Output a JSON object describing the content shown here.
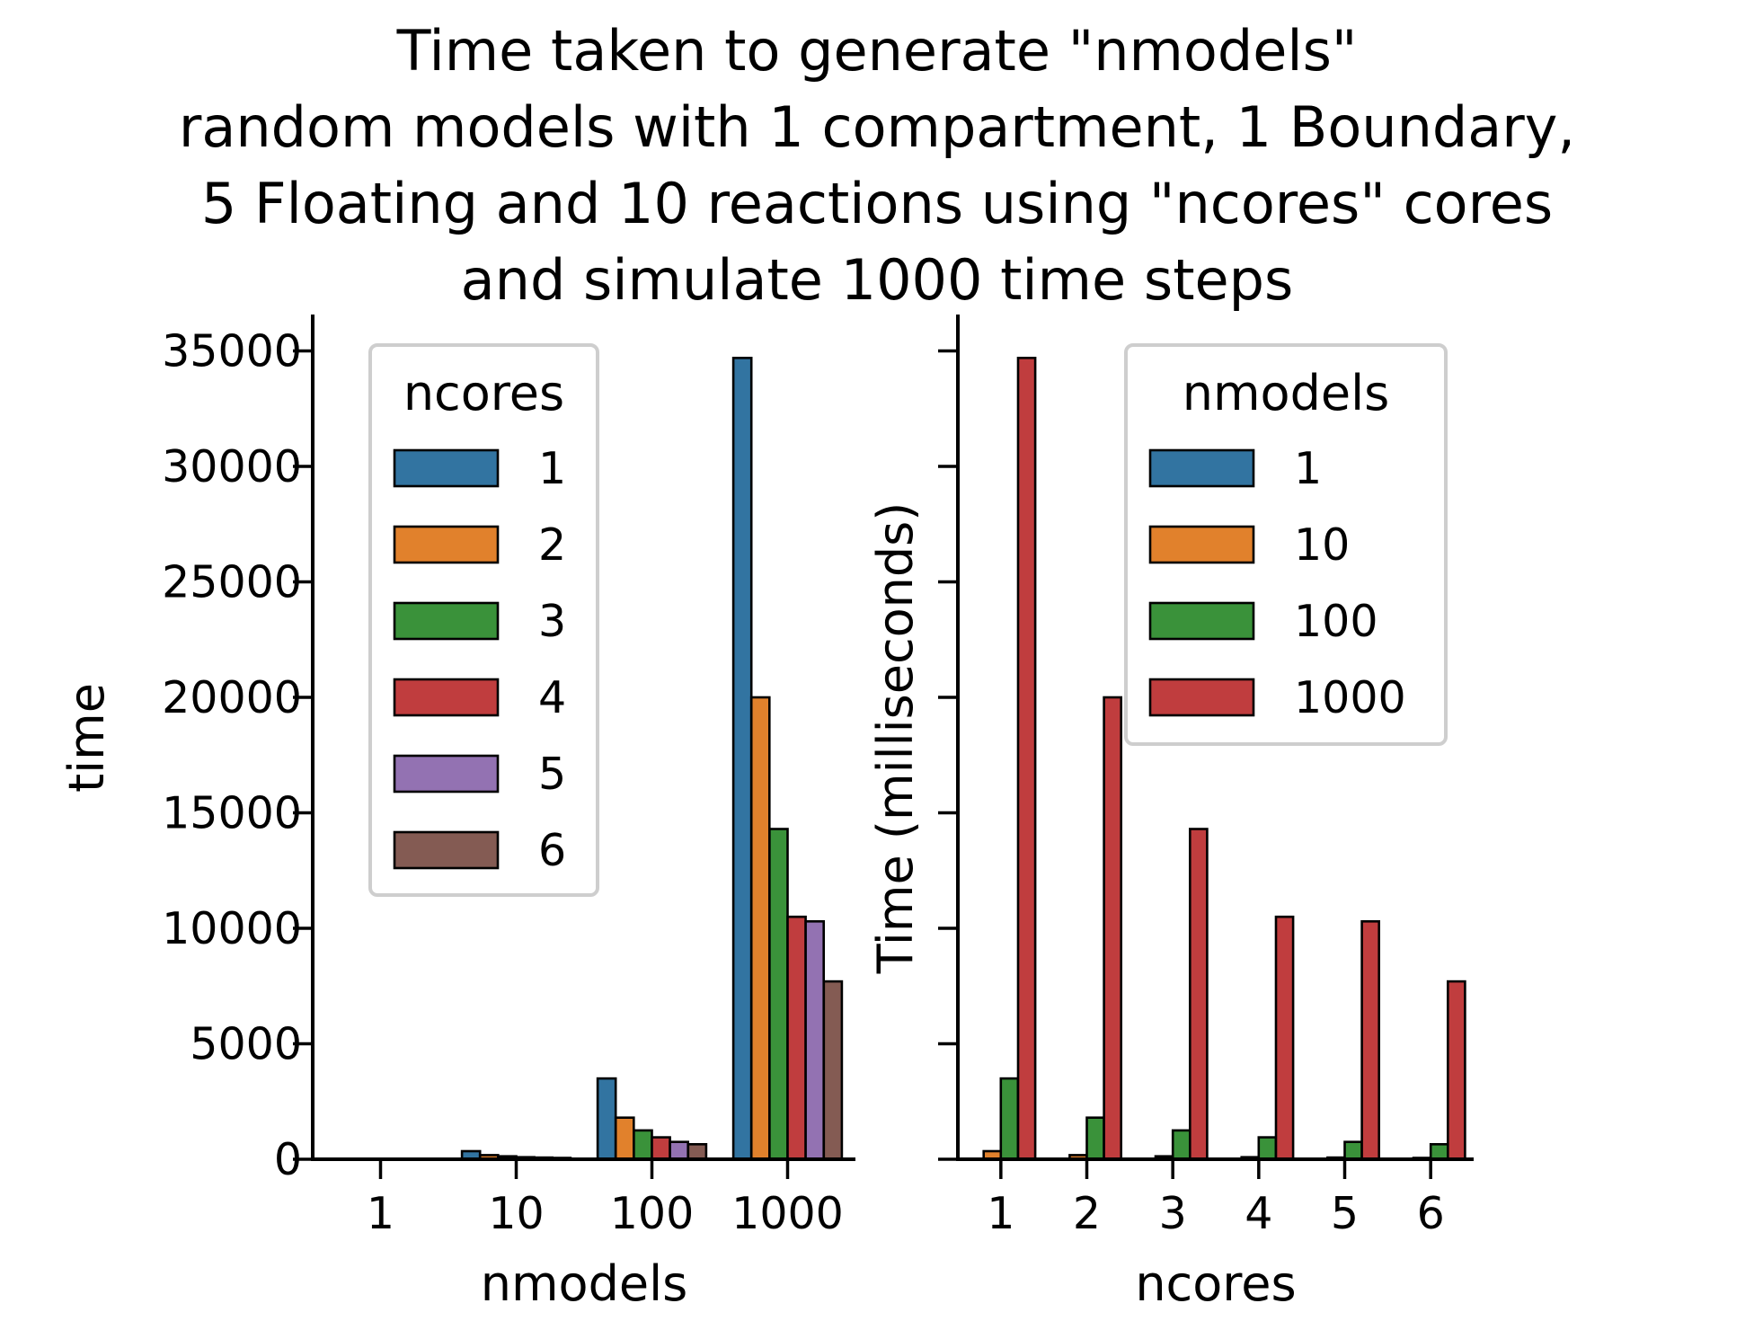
{
  "title_lines": [
    "Time taken to generate \"nmodels\"",
    "random models with 1 compartment, 1 Boundary,",
    "5 Floating and 10 reactions using \"ncores\" cores",
    "and simulate 1000 time steps"
  ],
  "colors": {
    "blue": "#3274a1",
    "orange": "#e1812c",
    "green": "#3a923a",
    "red": "#c03d3e",
    "purple": "#9372b2",
    "brown": "#845b53"
  },
  "chart_data": [
    {
      "type": "bar",
      "xlabel": "nmodels",
      "ylabel": "time",
      "categories": [
        "1",
        "10",
        "100",
        "1000"
      ],
      "ylim": [
        0,
        36500
      ],
      "yticks": [
        0,
        5000,
        10000,
        15000,
        20000,
        25000,
        30000,
        35000
      ],
      "grid": false,
      "legend": {
        "title": "ncores",
        "placement": "upper-left"
      },
      "series": [
        {
          "name": "1",
          "color": "#3274a1",
          "values": [
            4,
            350,
            3500,
            34700
          ]
        },
        {
          "name": "2",
          "color": "#e1812c",
          "values": [
            3,
            180,
            1800,
            20000
          ]
        },
        {
          "name": "3",
          "color": "#3a923a",
          "values": [
            3,
            130,
            1250,
            14300
          ]
        },
        {
          "name": "4",
          "color": "#c03d3e",
          "values": [
            2,
            90,
            950,
            10500
          ]
        },
        {
          "name": "5",
          "color": "#9372b2",
          "values": [
            2,
            75,
            750,
            10300
          ]
        },
        {
          "name": "6",
          "color": "#845b53",
          "values": [
            2,
            60,
            650,
            7700
          ]
        }
      ]
    },
    {
      "type": "bar",
      "xlabel": "ncores",
      "ylabel": "Time (milliseconds)",
      "categories": [
        "1",
        "2",
        "3",
        "4",
        "5",
        "6"
      ],
      "ylim": [
        0,
        36500
      ],
      "yticks": [
        0,
        5000,
        10000,
        15000,
        20000,
        25000,
        30000,
        35000
      ],
      "show_ytick_labels": false,
      "grid": false,
      "legend": {
        "title": "nmodels",
        "placement": "upper-right"
      },
      "series": [
        {
          "name": "1",
          "color": "#3274a1",
          "values": [
            4,
            3,
            3,
            2,
            2,
            2
          ]
        },
        {
          "name": "10",
          "color": "#e1812c",
          "values": [
            350,
            180,
            130,
            90,
            75,
            60
          ]
        },
        {
          "name": "100",
          "color": "#3a923a",
          "values": [
            3500,
            1800,
            1250,
            950,
            750,
            650
          ]
        },
        {
          "name": "1000",
          "color": "#c03d3e",
          "values": [
            34700,
            20000,
            14300,
            10500,
            10300,
            7700
          ]
        }
      ]
    }
  ]
}
